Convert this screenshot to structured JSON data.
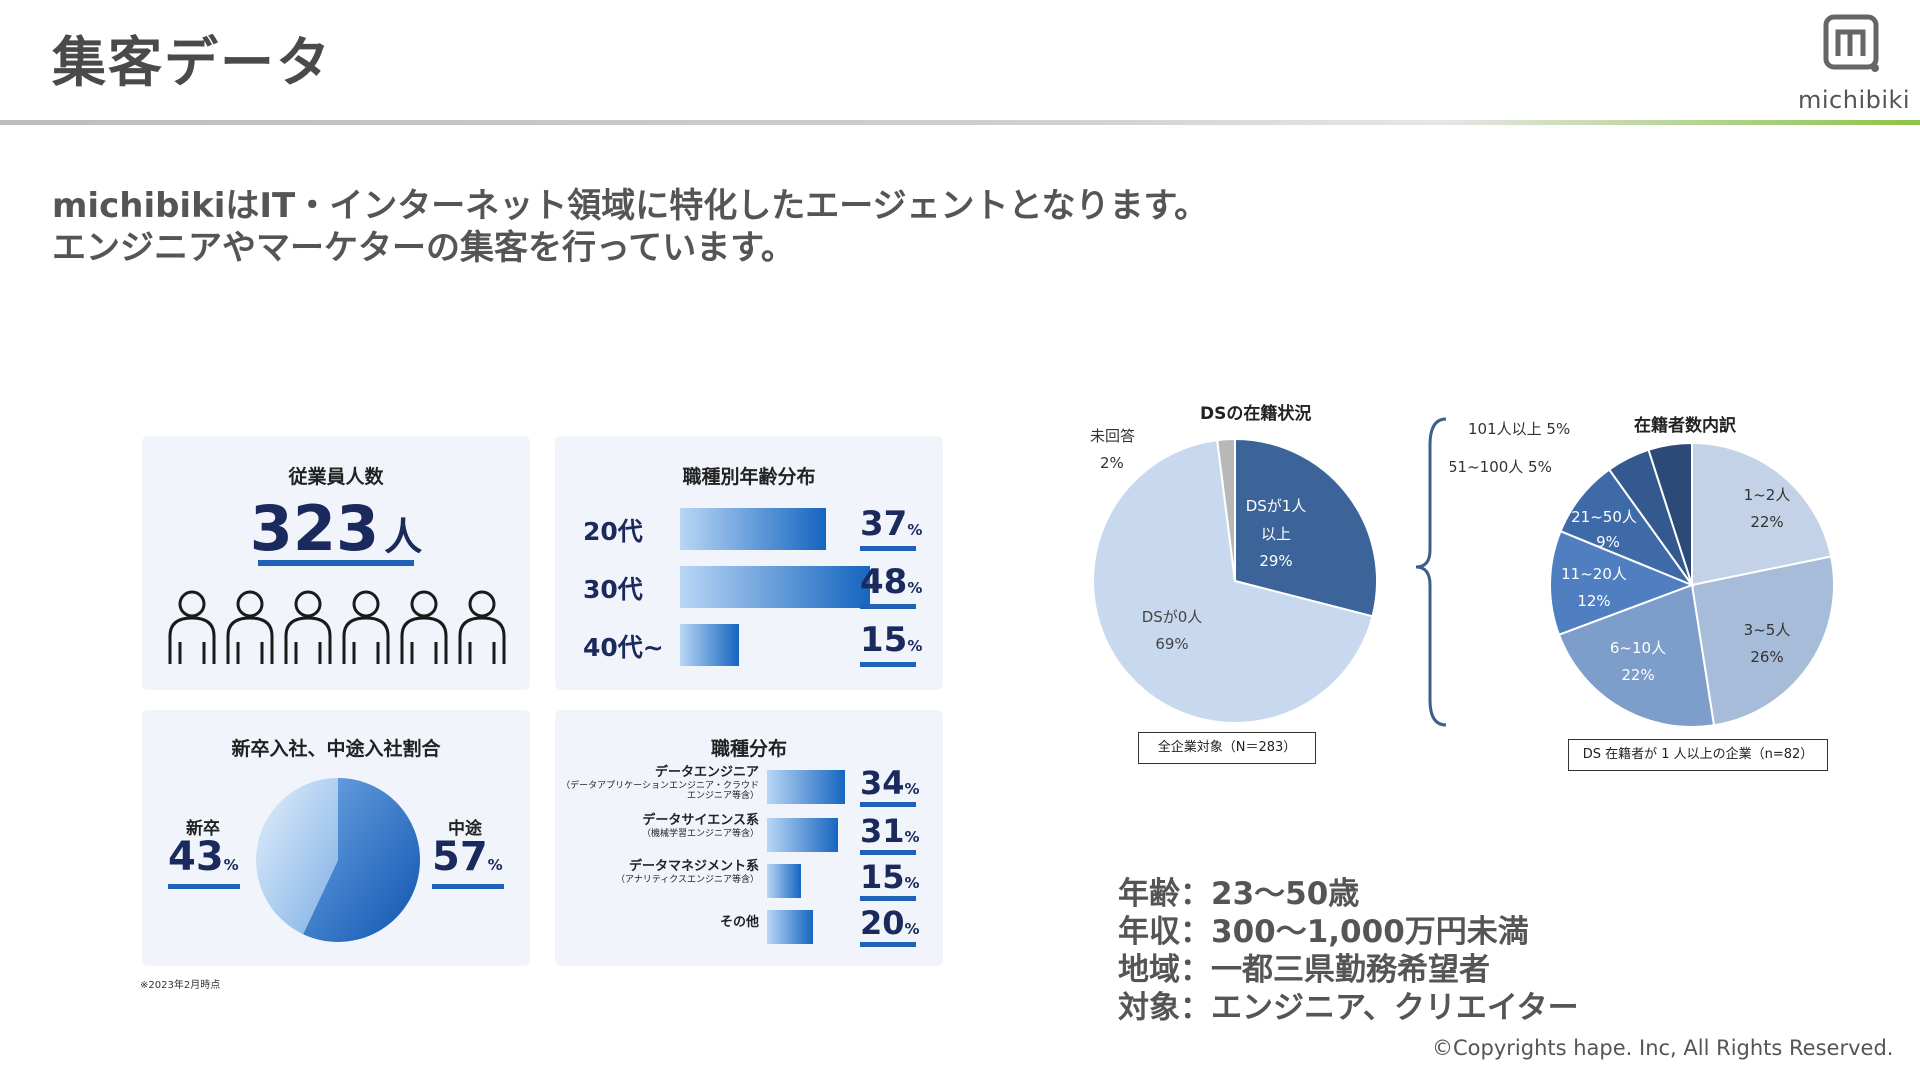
{
  "header": {
    "title": "集客データ",
    "logo_text": "michibiki"
  },
  "intro": {
    "line1": "michibikiはIT・インターネット領域に特化したエージェントとなります。",
    "line2": "エンジニアやマーケターの集客を行っています。"
  },
  "employees": {
    "title": "従業員人数",
    "value": "323",
    "unit": "人"
  },
  "age_dist": {
    "title": "職種別年齢分布",
    "rows": [
      {
        "label": "20代",
        "value": 37,
        "pct_text": "37"
      },
      {
        "label": "30代",
        "value": 48,
        "pct_text": "48"
      },
      {
        "label": "40代~",
        "value": 15,
        "pct_text": "15"
      }
    ],
    "pct_unit": "%"
  },
  "hire_ratio": {
    "title": "新卒入社、中途入社割合",
    "new_grad_label": "新卒",
    "new_grad_pct": "43",
    "mid_career_label": "中途",
    "mid_career_pct": "57",
    "pct_unit": "%"
  },
  "job_dist": {
    "title": "職種分布",
    "rows": [
      {
        "label": "データエンジニア",
        "sub": "（データアプリケーションエンジニア・クラウドエンジニア等含）",
        "value": 34,
        "pct_text": "34"
      },
      {
        "label": "データサイエンス系",
        "sub": "（機械学習エンジニア等含）",
        "value": 31,
        "pct_text": "31"
      },
      {
        "label": "データマネジメント系",
        "sub": "（アナリティクスエンジニア等含）",
        "value": 15,
        "pct_text": "15"
      },
      {
        "label": "その他",
        "sub": "",
        "value": 20,
        "pct_text": "20"
      }
    ],
    "pct_unit": "%"
  },
  "footnote": "※2023年2月時点",
  "chart_data": [
    {
      "type": "pie",
      "title": "DSの在籍状況",
      "caption": "全企業対象（N＝283）",
      "slices": [
        {
          "label": "DSが1人以上",
          "value": 29,
          "color": "#3c6498"
        },
        {
          "label": "DSが0人",
          "value": 69,
          "color": "#c8d9ef"
        },
        {
          "label": "未回答",
          "value": 2,
          "color": "#b8b8b8"
        }
      ],
      "text_labels": {
        "ds1_l1": "DSが1人",
        "ds1_l2": "以上",
        "ds1_pct": "29%",
        "ds0_l1": "DSが0人",
        "ds0_pct": "69%",
        "na_l1": "未回答",
        "na_pct": "2%"
      }
    },
    {
      "type": "pie",
      "title": "在籍者数内訳",
      "caption": "DS 在籍者が 1 人以上の企業（n=82）",
      "slices": [
        {
          "label": "1~2人",
          "value": 22,
          "color": "#c3d2e6"
        },
        {
          "label": "3~5人",
          "value": 26,
          "color": "#a7bcd8"
        },
        {
          "label": "6~10人",
          "value": 22,
          "color": "#7d9dcb"
        },
        {
          "label": "11~20人",
          "value": 12,
          "color": "#4f7fc0"
        },
        {
          "label": "21~50人",
          "value": 9,
          "color": "#3e6aa8"
        },
        {
          "label": "51~100人",
          "value": 5,
          "color": "#33598e"
        },
        {
          "label": "101人以上",
          "value": 5,
          "color": "#2b4a78"
        }
      ],
      "text_labels": {
        "s1_l": "1~2人",
        "s1_p": "22%",
        "s2_l": "3~5人",
        "s2_p": "26%",
        "s3_l": "6~10人",
        "s3_p": "22%",
        "s4_l": "11~20人",
        "s4_p": "12%",
        "s5_l": "21~50人",
        "s5_p": "9%",
        "s6": "51~100人 5%",
        "s7": "101人以上 5%"
      }
    },
    {
      "type": "pie",
      "title": "",
      "slices": [
        {
          "label": "新卒",
          "value": 43,
          "color": "#cfe2f7"
        },
        {
          "label": "中途",
          "value": 57,
          "color": "#1e6bc4"
        }
      ]
    }
  ],
  "facts": {
    "age": "年齢：23〜50歳",
    "income": "年収：300〜1,000万円未満",
    "region": "地域：一都三県勤務希望者",
    "target": "対象：エンジニア、クリエイター"
  },
  "copyright": "©Copyrights hape. Inc, All Rights Reserved."
}
